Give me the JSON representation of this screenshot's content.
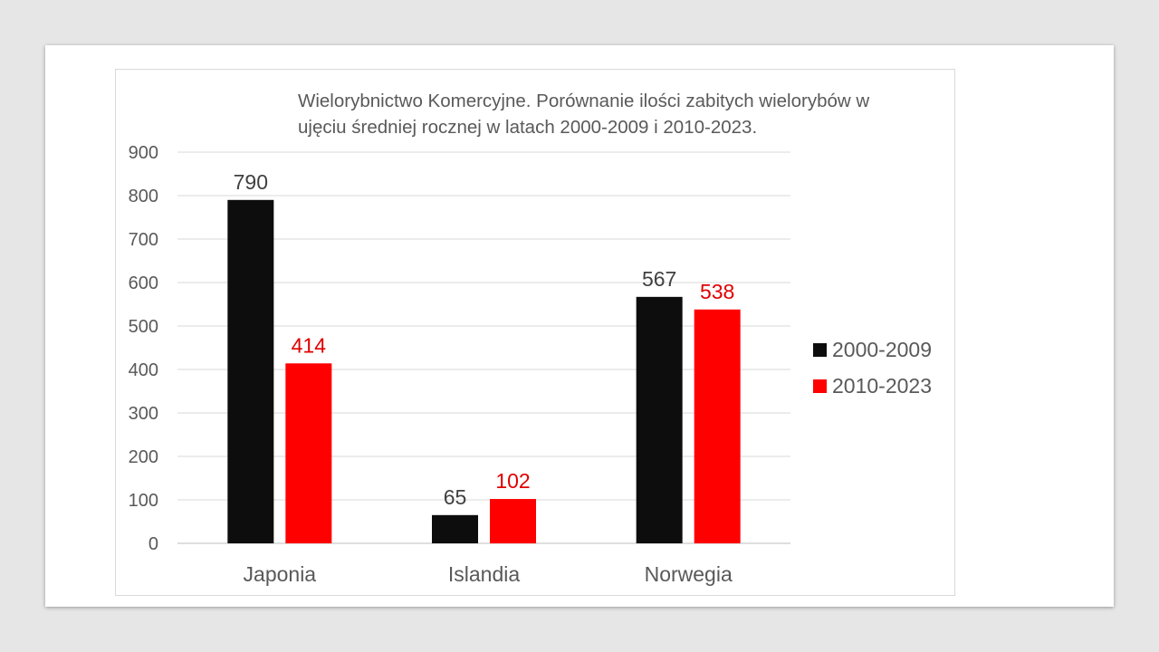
{
  "chart_data": {
    "type": "bar",
    "title": "Wielorybnictwo Komercyjne. Porównanie ilości  zabitych wielorybów w\nujęciu średniej rocznej w latach 2000-2009 i 2010-2023.",
    "categories": [
      "Japonia",
      "Islandia",
      "Norwegia"
    ],
    "series": [
      {
        "name": "2000-2009",
        "values": [
          790,
          65,
          567
        ],
        "color": "#0d0d0d",
        "label_color": "#404040"
      },
      {
        "name": "2010-2023",
        "values": [
          414,
          102,
          538
        ],
        "color": "#ff0000",
        "label_color": "#e00000"
      }
    ],
    "ylim": [
      0,
      900
    ],
    "yticks": [
      0,
      100,
      200,
      300,
      400,
      500,
      600,
      700,
      800,
      900
    ],
    "grid": true,
    "legend_position": "right",
    "xlabel": "",
    "ylabel": ""
  }
}
